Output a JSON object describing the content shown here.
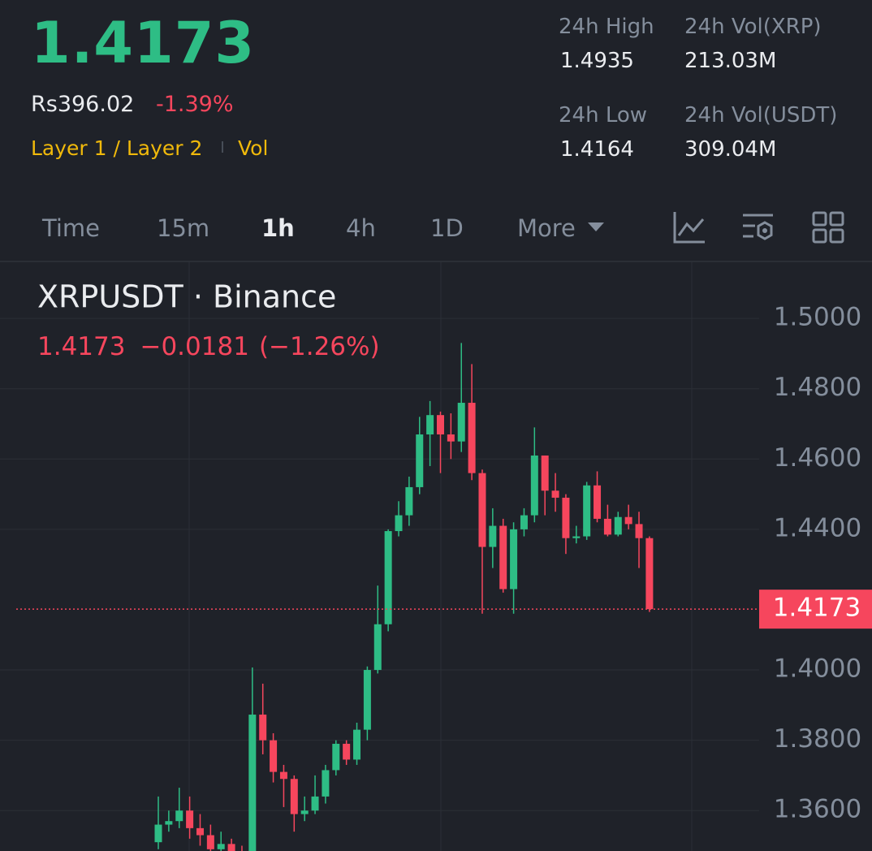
{
  "header": {
    "price": "1.4173",
    "fiat_price": "Rs396.02",
    "change": "-1.39%",
    "tags": [
      "Layer 1 / Layer 2",
      "Vol"
    ]
  },
  "stats": [
    {
      "label": "24h High",
      "value": "1.4935"
    },
    {
      "label": "24h Vol(XRP)",
      "value": "213.03M"
    },
    {
      "label": "24h Low",
      "value": "1.4164"
    },
    {
      "label": "24h Vol(USDT)",
      "value": "309.04M"
    }
  ],
  "tabs": [
    "Time",
    "15m",
    "1h",
    "4h",
    "1D",
    "More"
  ],
  "active_tab": 2,
  "chart_data": {
    "type": "candlestick",
    "title": "XRPUSDT · Binance",
    "legend": [
      "1.4173",
      "−0.0181",
      "(−1.26%)"
    ],
    "up_color": "#2ebd85",
    "down_color": "#f6465d",
    "ylim": [
      1.3485,
      1.5162
    ],
    "yticks": [
      {
        "value": 1.36,
        "label": "1.3600"
      },
      {
        "value": 1.38,
        "label": "1.3800"
      },
      {
        "value": 1.4,
        "label": "1.4000"
      },
      {
        "value": 1.44,
        "label": "1.4400"
      },
      {
        "value": 1.46,
        "label": "1.4600"
      },
      {
        "value": 1.48,
        "label": "1.4800"
      },
      {
        "value": 1.5,
        "label": "1.5000"
      }
    ],
    "last_price": 1.4173,
    "open": [
      1.351,
      1.356,
      1.357,
      1.36,
      1.355,
      1.353,
      1.349,
      1.3505,
      1.348,
      1.347,
      1.3873,
      1.38,
      1.371,
      1.369,
      1.359,
      1.36,
      1.364,
      1.3715,
      1.379,
      1.3745,
      1.383,
      1.4,
      1.413,
      1.4395,
      1.444,
      1.452,
      1.467,
      1.4725,
      1.467,
      1.465,
      1.476,
      1.456,
      1.435,
      1.441,
      1.423,
      1.44,
      1.444,
      1.461,
      1.451,
      1.449,
      1.4375,
      1.438,
      1.4525,
      1.443,
      1.4385,
      1.4435,
      1.4415,
      1.4375
    ],
    "high": [
      1.364,
      1.36,
      1.3665,
      1.364,
      1.359,
      1.356,
      1.354,
      1.352,
      1.35,
      1.4007,
      1.3961,
      1.382,
      1.373,
      1.37,
      1.364,
      1.37,
      1.373,
      1.38,
      1.38,
      1.385,
      1.401,
      1.424,
      1.44,
      1.448,
      1.455,
      1.472,
      1.4765,
      1.4735,
      1.473,
      1.493,
      1.487,
      1.457,
      1.446,
      1.443,
      1.442,
      1.446,
      1.469,
      1.461,
      1.456,
      1.45,
      1.441,
      1.4535,
      1.4565,
      1.447,
      1.445,
      1.447,
      1.445,
      1.438
    ],
    "low": [
      1.349,
      1.354,
      1.355,
      1.352,
      1.35,
      1.347,
      1.347,
      1.346,
      1.345,
      1.346,
      1.376,
      1.368,
      1.361,
      1.354,
      1.357,
      1.359,
      1.362,
      1.37,
      1.373,
      1.373,
      1.38,
      1.399,
      1.411,
      1.438,
      1.441,
      1.45,
      1.458,
      1.456,
      1.46,
      1.462,
      1.454,
      1.416,
      1.429,
      1.422,
      1.416,
      1.438,
      1.442,
      1.444,
      1.445,
      1.433,
      1.436,
      1.437,
      1.442,
      1.438,
      1.438,
      1.44,
      1.429,
      1.4165
    ],
    "close": [
      1.356,
      1.357,
      1.36,
      1.355,
      1.353,
      1.349,
      1.3505,
      1.348,
      1.347,
      1.3873,
      1.38,
      1.371,
      1.369,
      1.359,
      1.36,
      1.364,
      1.3715,
      1.379,
      1.3745,
      1.383,
      1.4,
      1.413,
      1.4395,
      1.444,
      1.452,
      1.467,
      1.4725,
      1.467,
      1.465,
      1.476,
      1.456,
      1.435,
      1.441,
      1.423,
      1.44,
      1.444,
      1.461,
      1.451,
      1.449,
      1.4375,
      1.438,
      1.4525,
      1.443,
      1.4385,
      1.4435,
      1.4415,
      1.4375,
      1.4173
    ]
  }
}
